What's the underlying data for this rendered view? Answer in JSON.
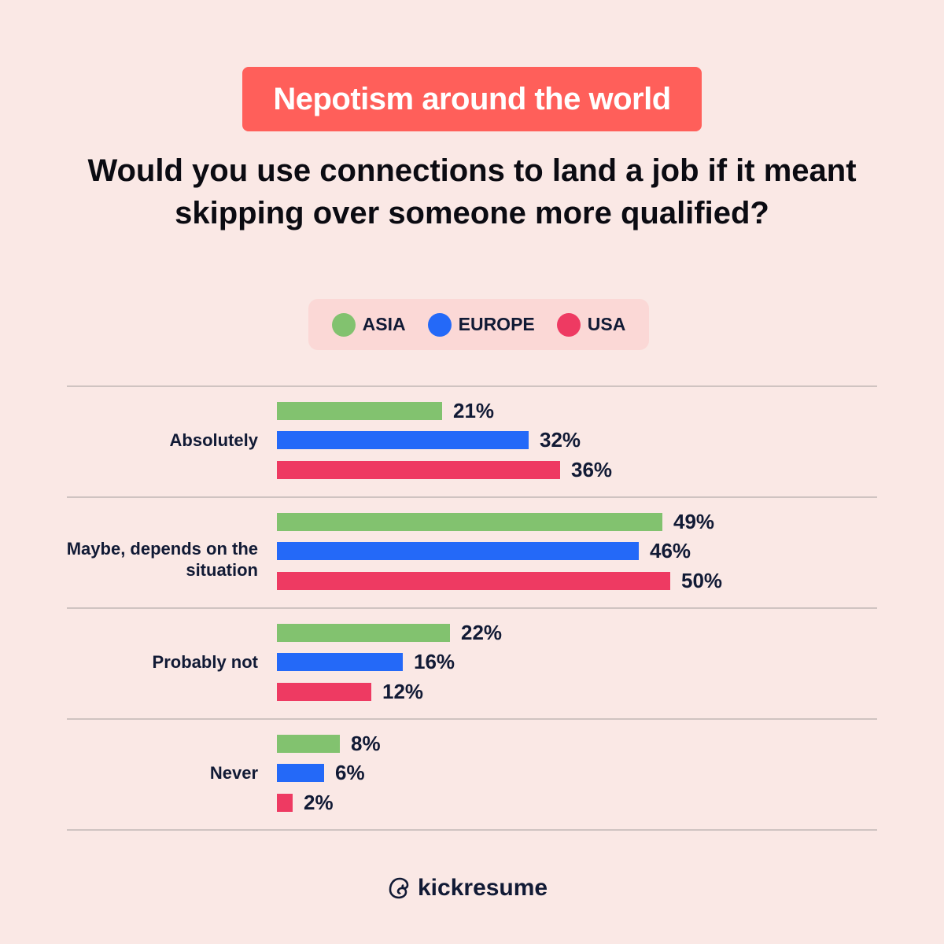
{
  "badge": "Nepotism around the world",
  "question": "Would you use connections to land a job if it meant skipping over someone more qualified?",
  "legend": [
    {
      "label": "ASIA",
      "color": "#82c26f"
    },
    {
      "label": "EUROPE",
      "color": "#2469f8"
    },
    {
      "label": "USA",
      "color": "#ee3a62"
    }
  ],
  "brand": "kickresume",
  "chart_data": {
    "type": "bar",
    "orientation": "horizontal",
    "title": "Would you use connections to land a job if it meant skipping over someone more qualified?",
    "categories": [
      "Absolutely",
      "Maybe, depends on the situation",
      "Probably not",
      "Never"
    ],
    "series": [
      {
        "name": "ASIA",
        "color": "#82c26f",
        "values": [
          21,
          49,
          22,
          8
        ]
      },
      {
        "name": "EUROPE",
        "color": "#2469f8",
        "values": [
          32,
          46,
          16,
          6
        ]
      },
      {
        "name": "USA",
        "color": "#ee3a62",
        "values": [
          36,
          50,
          12,
          2
        ]
      }
    ],
    "value_suffix": "%",
    "legend_position": "top",
    "grid": false,
    "xlabel": "",
    "ylabel": ""
  }
}
